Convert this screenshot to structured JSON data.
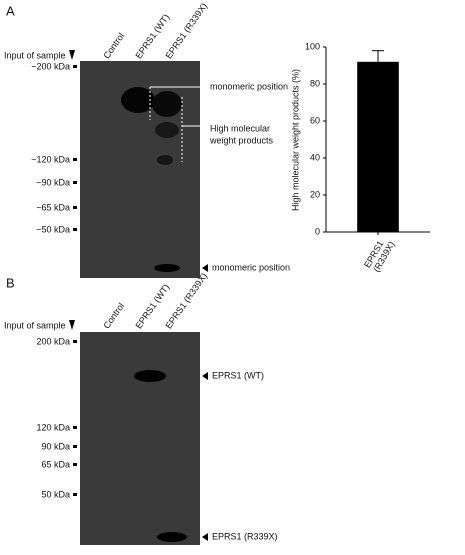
{
  "panel_a": {
    "label": "A",
    "input_label": "Input of sample",
    "lanes": [
      "Control",
      "EPRS1 (WT)",
      "EPRS1 (R339X)"
    ],
    "markers": [
      "~200 kDa",
      "~120 kDa",
      "~90 kDa",
      "~65 kDa",
      "~50 kDa"
    ],
    "annotations": [
      "monomeric position",
      "High molecular",
      "weight products",
      "monomeric position"
    ]
  },
  "panel_b": {
    "label": "B",
    "input_label": "Input of sample",
    "lanes": [
      "Control",
      "EPRS1 (WT)",
      "EPRS1 (R339X)"
    ],
    "markers": [
      "200 kDa",
      "120 kDa",
      "90 kDa",
      "65 kDa",
      "50 kDa"
    ],
    "annotations": [
      "EPRS1 (WT)",
      "EPRS1 (R339X)"
    ]
  },
  "chart_data": {
    "type": "bar",
    "ylabel": "High molecular weight products (%)",
    "categories": [
      "EPRS1 (R339X)"
    ],
    "values": [
      92
    ],
    "errors": [
      6
    ],
    "color": "#000000",
    "ylim": [
      0,
      100
    ],
    "yticks": [
      0,
      20,
      40,
      60,
      80,
      100
    ]
  }
}
